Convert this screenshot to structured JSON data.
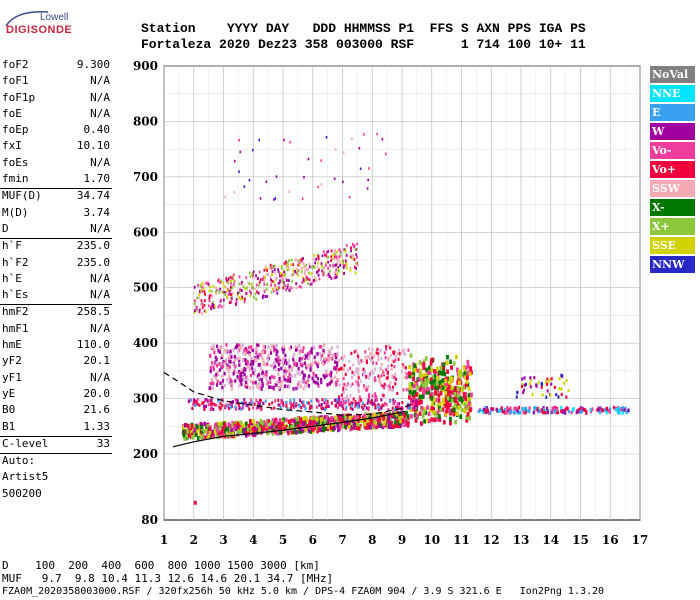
{
  "logo": {
    "line1": "Lowell",
    "line2": "DIGISONDE"
  },
  "header": {
    "row1": "Station    YYYY DAY   DDD HHMMSS P1  FFS S AXN PPS IGA PS",
    "row2": "Fortaleza 2020 Dez23 358 003000 RSF      1 714 100 10+ 11"
  },
  "params": [
    {
      "label": "foF2",
      "value": "9.300"
    },
    {
      "label": "foF1",
      "value": "N/A"
    },
    {
      "label": "foF1p",
      "value": "N/A"
    },
    {
      "label": "foE",
      "value": "N/A"
    },
    {
      "label": "foEp",
      "value": "0.40"
    },
    {
      "label": "fxI",
      "value": "10.10"
    },
    {
      "label": "foEs",
      "value": "N/A"
    },
    {
      "label": "fmin",
      "value": "1.70"
    },
    {
      "label": "MUF(D)",
      "value": "34.74",
      "sep": true
    },
    {
      "label": "M(D)",
      "value": "3.74"
    },
    {
      "label": "D",
      "value": "N/A"
    },
    {
      "label": "h`F",
      "value": "235.0",
      "sep": true
    },
    {
      "label": "h`F2",
      "value": "235.0"
    },
    {
      "label": "h`E",
      "value": "N/A"
    },
    {
      "label": "h`Es",
      "value": "N/A"
    },
    {
      "label": "hmF2",
      "value": "258.5",
      "sep": true
    },
    {
      "label": "hmF1",
      "value": "N/A"
    },
    {
      "label": "hmE",
      "value": "110.0"
    },
    {
      "label": "yF2",
      "value": "20.1"
    },
    {
      "label": "yF1",
      "value": "N/A"
    },
    {
      "label": "yE",
      "value": "20.0"
    },
    {
      "label": "B0",
      "value": "21.6"
    },
    {
      "label": "B1",
      "value": "1.33"
    },
    {
      "label": "C-level",
      "value": "33",
      "sep": true
    },
    {
      "label": "Auto:",
      "value": "",
      "sep": true
    },
    {
      "label": "Artist5",
      "value": ""
    },
    {
      "label": "500200",
      "value": ""
    }
  ],
  "legend": [
    {
      "name": "NoVal",
      "color": "#808080"
    },
    {
      "name": "NNE",
      "color": "#00e5ff"
    },
    {
      "name": "E",
      "color": "#3aa0f0"
    },
    {
      "name": "W",
      "color": "#a000a0"
    },
    {
      "name": "Vo-",
      "color": "#f03c9c"
    },
    {
      "name": "Vo+",
      "color": "#f0003c"
    },
    {
      "name": "SSW",
      "color": "#f4aab4"
    },
    {
      "name": "X-",
      "color": "#007800"
    },
    {
      "name": "X+",
      "color": "#8cc83c"
    },
    {
      "name": "SSE",
      "color": "#d2d200"
    },
    {
      "name": "NNW",
      "color": "#2828c8"
    }
  ],
  "bottom": {
    "line1": "D    100  200  400  600  800 1000 1500 3000 [km]",
    "line2": "MUF   9.7  9.8 10.4 11.3 12.6 14.6 20.1 34.7 [MHz]",
    "line3": "FZA0M_2020358003000.RSF / 320fx256h 50 kHz 5.0 km / DPS-4 FZA0M 904 / 3.9 S 321.6 E   Ion2Png 1.3.20"
  },
  "chart_data": {
    "type": "scatter",
    "xlim": [
      1,
      17
    ],
    "ylim": [
      80,
      900
    ],
    "xticks": [
      "1",
      "2",
      "3",
      "4",
      "5",
      "6",
      "7",
      "8",
      "9",
      "10",
      "11",
      "12",
      "13",
      "14",
      "15",
      "16",
      "17"
    ],
    "yticks": [
      "80",
      "200",
      "300",
      "400",
      "500",
      "600",
      "700",
      "800",
      "900"
    ],
    "grid": true,
    "legend_placement": "right",
    "clusters": [
      {
        "name": "F-trace",
        "x": [
          1.6,
          9.2
        ],
        "y": [
          240,
          275
        ],
        "color": "Vo+"
      },
      {
        "name": "F-trace-upper",
        "x": [
          9.2,
          11.3
        ],
        "y": [
          250,
          420
        ],
        "color": "Vo+"
      },
      {
        "name": "spread-F",
        "x": [
          2.5,
          8.5
        ],
        "y": [
          320,
          410
        ],
        "color": "W"
      },
      {
        "name": "second-hop",
        "x": [
          2,
          7.5
        ],
        "y": [
          470,
          620
        ],
        "color": "SSW"
      },
      {
        "name": "oblique",
        "x": [
          11.5,
          16.5
        ],
        "y": [
          270,
          360
        ],
        "color": "NNE"
      }
    ],
    "curves": [
      {
        "name": "solid",
        "points": [
          [
            1.3,
            213
          ],
          [
            2,
            222
          ],
          [
            3,
            232
          ],
          [
            4,
            237
          ],
          [
            5,
            243
          ],
          [
            6,
            250
          ],
          [
            7,
            257
          ],
          [
            8,
            265
          ],
          [
            9.1,
            277
          ]
        ]
      },
      {
        "name": "dashed",
        "points": [
          [
            1,
            347
          ],
          [
            1.5,
            330
          ],
          [
            2,
            312
          ],
          [
            3,
            296
          ],
          [
            4,
            288
          ],
          [
            5,
            280
          ],
          [
            6,
            276
          ],
          [
            7,
            270
          ],
          [
            8,
            272
          ],
          [
            9,
            282
          ],
          [
            9.3,
            290
          ]
        ]
      }
    ]
  }
}
